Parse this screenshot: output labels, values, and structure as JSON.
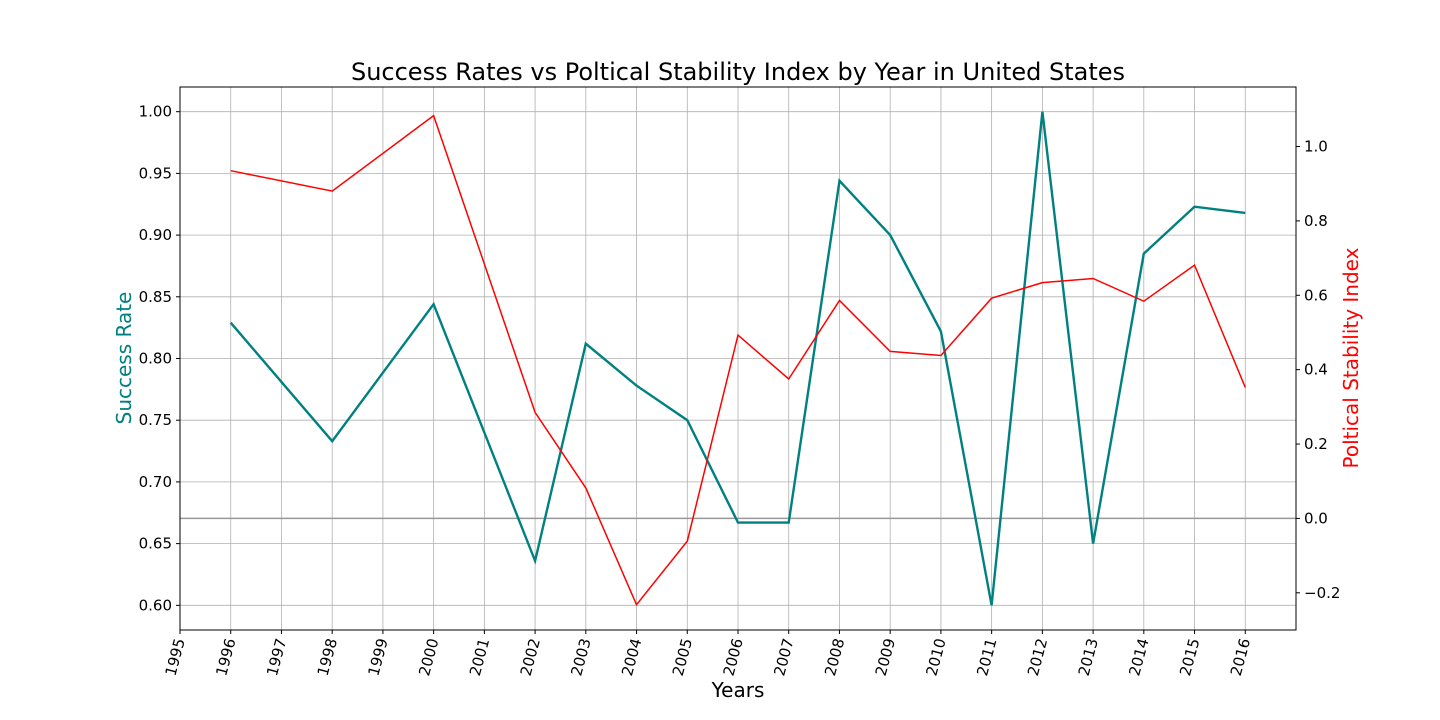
{
  "chart_data": {
    "type": "line",
    "title": "Success Rates vs Poltical Stability Index by Year in United States",
    "xlabel": "Years",
    "ylabel_left": "Success Rate",
    "ylabel_right": "Poltical Stability Index",
    "x": [
      1996,
      1998,
      2000,
      2002,
      2003,
      2004,
      2005,
      2006,
      2007,
      2008,
      2009,
      2010,
      2011,
      2012,
      2013,
      2014,
      2015,
      2016
    ],
    "x_ticks": [
      "1995",
      "1996",
      "1997",
      "1998",
      "1999",
      "2000",
      "2001",
      "2002",
      "2003",
      "2004",
      "2005",
      "2006",
      "2007",
      "2008",
      "2009",
      "2010",
      "2011",
      "2012",
      "2013",
      "2014",
      "2015",
      "2016"
    ],
    "xlim": [
      1995,
      2017
    ],
    "y_left_ticks": [
      "0.60",
      "0.65",
      "0.70",
      "0.75",
      "0.80",
      "0.85",
      "0.90",
      "0.95",
      "1.00"
    ],
    "y_right_ticks": [
      "−0.2",
      "0.0",
      "0.2",
      "0.4",
      "0.6",
      "0.8",
      "1.0"
    ],
    "ylim_left": [
      0.58,
      1.02
    ],
    "ylim_right": [
      -0.3,
      1.16
    ],
    "grid": true,
    "reference_line": {
      "axis": "right",
      "value": 0.0,
      "color": "#999999"
    },
    "series": [
      {
        "axis": "left",
        "color": "#008080",
        "values": [
          0.829,
          0.733,
          0.844,
          0.636,
          0.812,
          0.778,
          0.75,
          0.667,
          0.667,
          0.944,
          0.9,
          0.822,
          0.6,
          1.0,
          0.65,
          0.885,
          0.923,
          0.918
        ]
      },
      {
        "axis": "right",
        "color": "#ff0000",
        "values": [
          0.935,
          0.88,
          1.083,
          0.285,
          0.082,
          -0.232,
          -0.061,
          0.493,
          0.375,
          0.586,
          0.449,
          0.438,
          0.592,
          0.634,
          0.645,
          0.584,
          0.681,
          0.352
        ]
      }
    ]
  }
}
